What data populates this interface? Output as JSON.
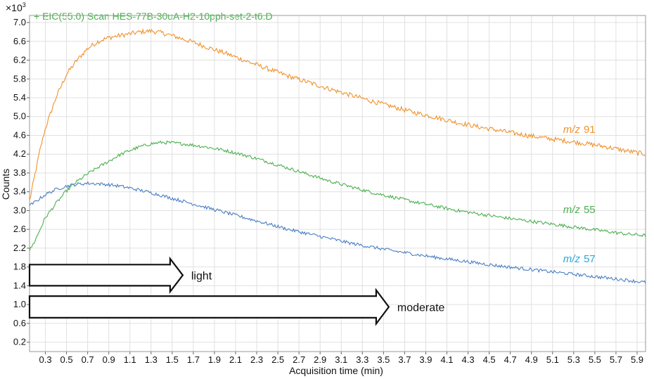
{
  "chart_data": {
    "type": "line",
    "title": "+ EIC(55.0) Scan HES-77B-30uA-H2-10pph-set-2-t6.D",
    "title_color": "#4caf50",
    "xlabel": "Acquisition time (min)",
    "ylabel": "Counts",
    "y_multiplier": "×10³",
    "y_multiplier_base": "×10",
    "y_multiplier_exp": "3",
    "xlim": [
      0.15,
      5.98
    ],
    "ylim": [
      0,
      7.15
    ],
    "x_ticks": [
      0.3,
      0.5,
      0.7,
      0.9,
      1.1,
      1.3,
      1.5,
      1.7,
      1.9,
      2.1,
      2.3,
      2.5,
      2.7,
      2.9,
      3.1,
      3.3,
      3.5,
      3.7,
      3.9,
      4.1,
      4.3,
      4.5,
      4.7,
      4.9,
      5.1,
      5.3,
      5.5,
      5.7,
      5.9
    ],
    "y_ticks": [
      0.2,
      0.6,
      1.0,
      1.4,
      1.8,
      2.2,
      2.6,
      3.0,
      3.4,
      3.8,
      4.2,
      4.6,
      5.0,
      5.4,
      5.8,
      6.2,
      6.6,
      7.0
    ],
    "grid": true,
    "x": [
      0.15,
      0.2,
      0.25,
      0.3,
      0.4,
      0.5,
      0.6,
      0.7,
      0.8,
      0.9,
      1.0,
      1.1,
      1.2,
      1.3,
      1.4,
      1.5,
      1.6,
      1.7,
      1.8,
      1.9,
      2.0,
      2.2,
      2.4,
      2.6,
      2.8,
      3.0,
      3.2,
      3.4,
      3.6,
      3.8,
      4.0,
      4.2,
      4.4,
      4.6,
      4.8,
      5.0,
      5.2,
      5.4,
      5.6,
      5.8,
      5.98
    ],
    "series": [
      {
        "name": "m/z 91",
        "color": "#f0922e",
        "values": [
          3.2,
          3.75,
          4.3,
          4.75,
          5.4,
          5.9,
          6.2,
          6.45,
          6.6,
          6.68,
          6.72,
          6.76,
          6.8,
          6.82,
          6.78,
          6.72,
          6.65,
          6.58,
          6.5,
          6.42,
          6.35,
          6.18,
          6.02,
          5.86,
          5.72,
          5.58,
          5.45,
          5.32,
          5.2,
          5.08,
          4.98,
          4.87,
          4.78,
          4.7,
          4.62,
          4.55,
          4.49,
          4.43,
          4.36,
          4.27,
          4.2
        ]
      },
      {
        "name": "m/z 55",
        "color": "#4caf50",
        "values": [
          2.15,
          2.35,
          2.6,
          2.85,
          3.15,
          3.42,
          3.62,
          3.78,
          3.92,
          4.05,
          4.18,
          4.28,
          4.36,
          4.42,
          4.45,
          4.44,
          4.42,
          4.39,
          4.36,
          4.32,
          4.28,
          4.17,
          4.04,
          3.9,
          3.76,
          3.62,
          3.5,
          3.38,
          3.28,
          3.18,
          3.09,
          3.0,
          2.93,
          2.86,
          2.8,
          2.74,
          2.68,
          2.62,
          2.56,
          2.5,
          2.47
        ]
      },
      {
        "name": "m/z 57",
        "color": "#4a7fc1",
        "values": [
          3.1,
          3.18,
          3.26,
          3.34,
          3.45,
          3.52,
          3.56,
          3.58,
          3.57,
          3.55,
          3.52,
          3.48,
          3.43,
          3.38,
          3.32,
          3.26,
          3.2,
          3.14,
          3.08,
          3.02,
          2.96,
          2.84,
          2.72,
          2.6,
          2.5,
          2.4,
          2.3,
          2.22,
          2.14,
          2.07,
          2.0,
          1.94,
          1.88,
          1.82,
          1.77,
          1.72,
          1.67,
          1.62,
          1.57,
          1.52,
          1.47
        ]
      }
    ],
    "series_labels": [
      {
        "italic": "m/z",
        "number": "91",
        "color": "#f0922e",
        "anchor_x": 5.2,
        "anchor_y": 4.65
      },
      {
        "italic": "m/z",
        "number": "55",
        "color": "#4caf50",
        "anchor_x": 5.2,
        "anchor_y": 2.95
      },
      {
        "italic": "m/z",
        "number": "57",
        "color": "#29a8d8",
        "anchor_x": 5.2,
        "anchor_y": 1.9
      }
    ],
    "annotations": [
      {
        "label": "light",
        "from_x": 0.15,
        "to_x": 1.6,
        "y_top": 1.85,
        "y_bottom": 1.4
      },
      {
        "label": "moderate",
        "from_x": 0.15,
        "to_x": 3.55,
        "y_top": 1.18,
        "y_bottom": 0.72
      }
    ]
  }
}
